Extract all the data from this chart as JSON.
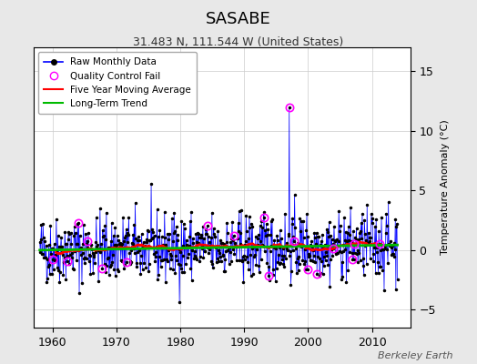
{
  "title": "SASABE",
  "subtitle": "31.483 N, 111.544 W (United States)",
  "ylabel": "Temperature Anomaly (°C)",
  "watermark": "Berkeley Earth",
  "xlim": [
    1957,
    2016
  ],
  "ylim": [
    -6.5,
    17
  ],
  "yticks": [
    -5,
    0,
    5,
    10,
    15
  ],
  "xticks": [
    1960,
    1970,
    1980,
    1990,
    2000,
    2010
  ],
  "line_color": "#0000ff",
  "marker_color": "#000000",
  "qc_color": "#ff00ff",
  "ma_color": "#ff0000",
  "trend_color": "#00bb00",
  "fig_background": "#e8e8e8",
  "plot_background": "#ffffff",
  "seed": 42,
  "n_points": 672,
  "start_year": 1958.0,
  "noise_std": 1.4,
  "trend_slope": 0.008,
  "ma_window": 60,
  "spike_idx": 468,
  "spike_value": 12.0
}
